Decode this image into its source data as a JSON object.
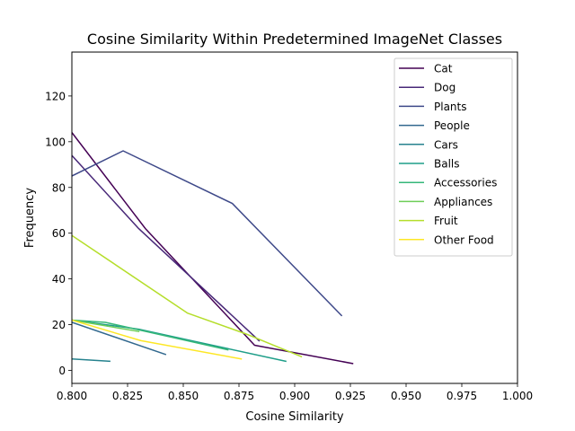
{
  "chart_data": {
    "type": "line",
    "title": "Cosine Similarity Within Predetermined ImageNet Classes",
    "xlabel": "Cosine Similarity",
    "ylabel": "Frequency",
    "xlim": [
      0.8,
      1.0
    ],
    "ylim": [
      -5.7,
      139.2
    ],
    "xticks": [
      0.8,
      0.825,
      0.85,
      0.875,
      0.9,
      0.925,
      0.95,
      0.975,
      1.0
    ],
    "xtick_labels": [
      "0.800",
      "0.825",
      "0.850",
      "0.875",
      "0.900",
      "0.925",
      "0.950",
      "0.975",
      "1.000"
    ],
    "yticks": [
      0,
      20,
      40,
      60,
      80,
      100,
      120
    ],
    "ytick_labels": [
      "0",
      "20",
      "40",
      "60",
      "80",
      "100",
      "120"
    ],
    "grid": false,
    "legend_position": "top-right",
    "series": [
      {
        "name": "Cat",
        "color": "#440154",
        "x": [
          0.8,
          0.833,
          0.882,
          0.926
        ],
        "y": [
          104,
          62,
          11,
          3
        ]
      },
      {
        "name": "Dog",
        "color": "#482878",
        "x": [
          0.8,
          0.83,
          0.884
        ],
        "y": [
          94,
          62,
          13
        ]
      },
      {
        "name": "Plants",
        "color": "#3e4989",
        "x": [
          0.8,
          0.823,
          0.872,
          0.921
        ],
        "y": [
          85,
          96,
          73,
          24
        ]
      },
      {
        "name": "People",
        "color": "#31688e",
        "x": [
          0.8,
          0.842
        ],
        "y": [
          21,
          7
        ]
      },
      {
        "name": "Cars",
        "color": "#26828e",
        "x": [
          0.8,
          0.817
        ],
        "y": [
          5,
          4
        ]
      },
      {
        "name": "Balls",
        "color": "#1f9e89",
        "x": [
          0.8,
          0.83,
          0.896
        ],
        "y": [
          22,
          18,
          4
        ]
      },
      {
        "name": "Accessories",
        "color": "#35b779",
        "x": [
          0.8,
          0.815,
          0.87
        ],
        "y": [
          22,
          21,
          9
        ]
      },
      {
        "name": "Appliances",
        "color": "#6ece58",
        "x": [
          0.8,
          0.83
        ],
        "y": [
          22,
          17
        ]
      },
      {
        "name": "Fruit",
        "color": "#b5de2b",
        "x": [
          0.8,
          0.852,
          0.878,
          0.903
        ],
        "y": [
          59,
          25,
          16,
          6
        ]
      },
      {
        "name": "Other Food",
        "color": "#fde725",
        "x": [
          0.8,
          0.831,
          0.876
        ],
        "y": [
          22,
          13,
          5
        ]
      }
    ]
  }
}
